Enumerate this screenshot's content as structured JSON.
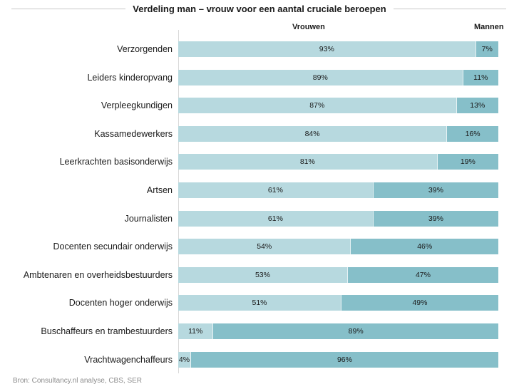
{
  "chart_data": {
    "type": "bar",
    "orientation": "horizontal",
    "stacked": "100%",
    "title": "Verdeling man – vrouw voor een aantal cruciale beroepen",
    "xlabel": "",
    "ylabel": "",
    "xlim": [
      0,
      100
    ],
    "grid": false,
    "legend_placement": "top",
    "categories": [
      "Verzorgenden",
      "Leiders kinderopvang",
      "Verpleegkundigen",
      "Kassamedewerkers",
      "Leerkrachten basisonderwijs",
      "Artsen",
      "Journalisten",
      "Docenten secundair onderwijs",
      "Ambtenaren en overheidsbestuurders",
      "Docenten hoger onderwijs",
      "Buschaffeurs en trambestuurders",
      "Vrachtwagenchaffeurs"
    ],
    "series": [
      {
        "name": "Vrouwen",
        "color": "#b7d9df",
        "values": [
          93,
          89,
          87,
          84,
          81,
          61,
          61,
          54,
          53,
          51,
          11,
          4
        ]
      },
      {
        "name": "Mannen",
        "color": "#86bfc9",
        "values": [
          7,
          11,
          13,
          16,
          19,
          39,
          39,
          46,
          47,
          49,
          89,
          96
        ]
      }
    ],
    "value_suffix": "%",
    "source": "Bron: Consultancy.nl analyse, CBS, SER"
  }
}
